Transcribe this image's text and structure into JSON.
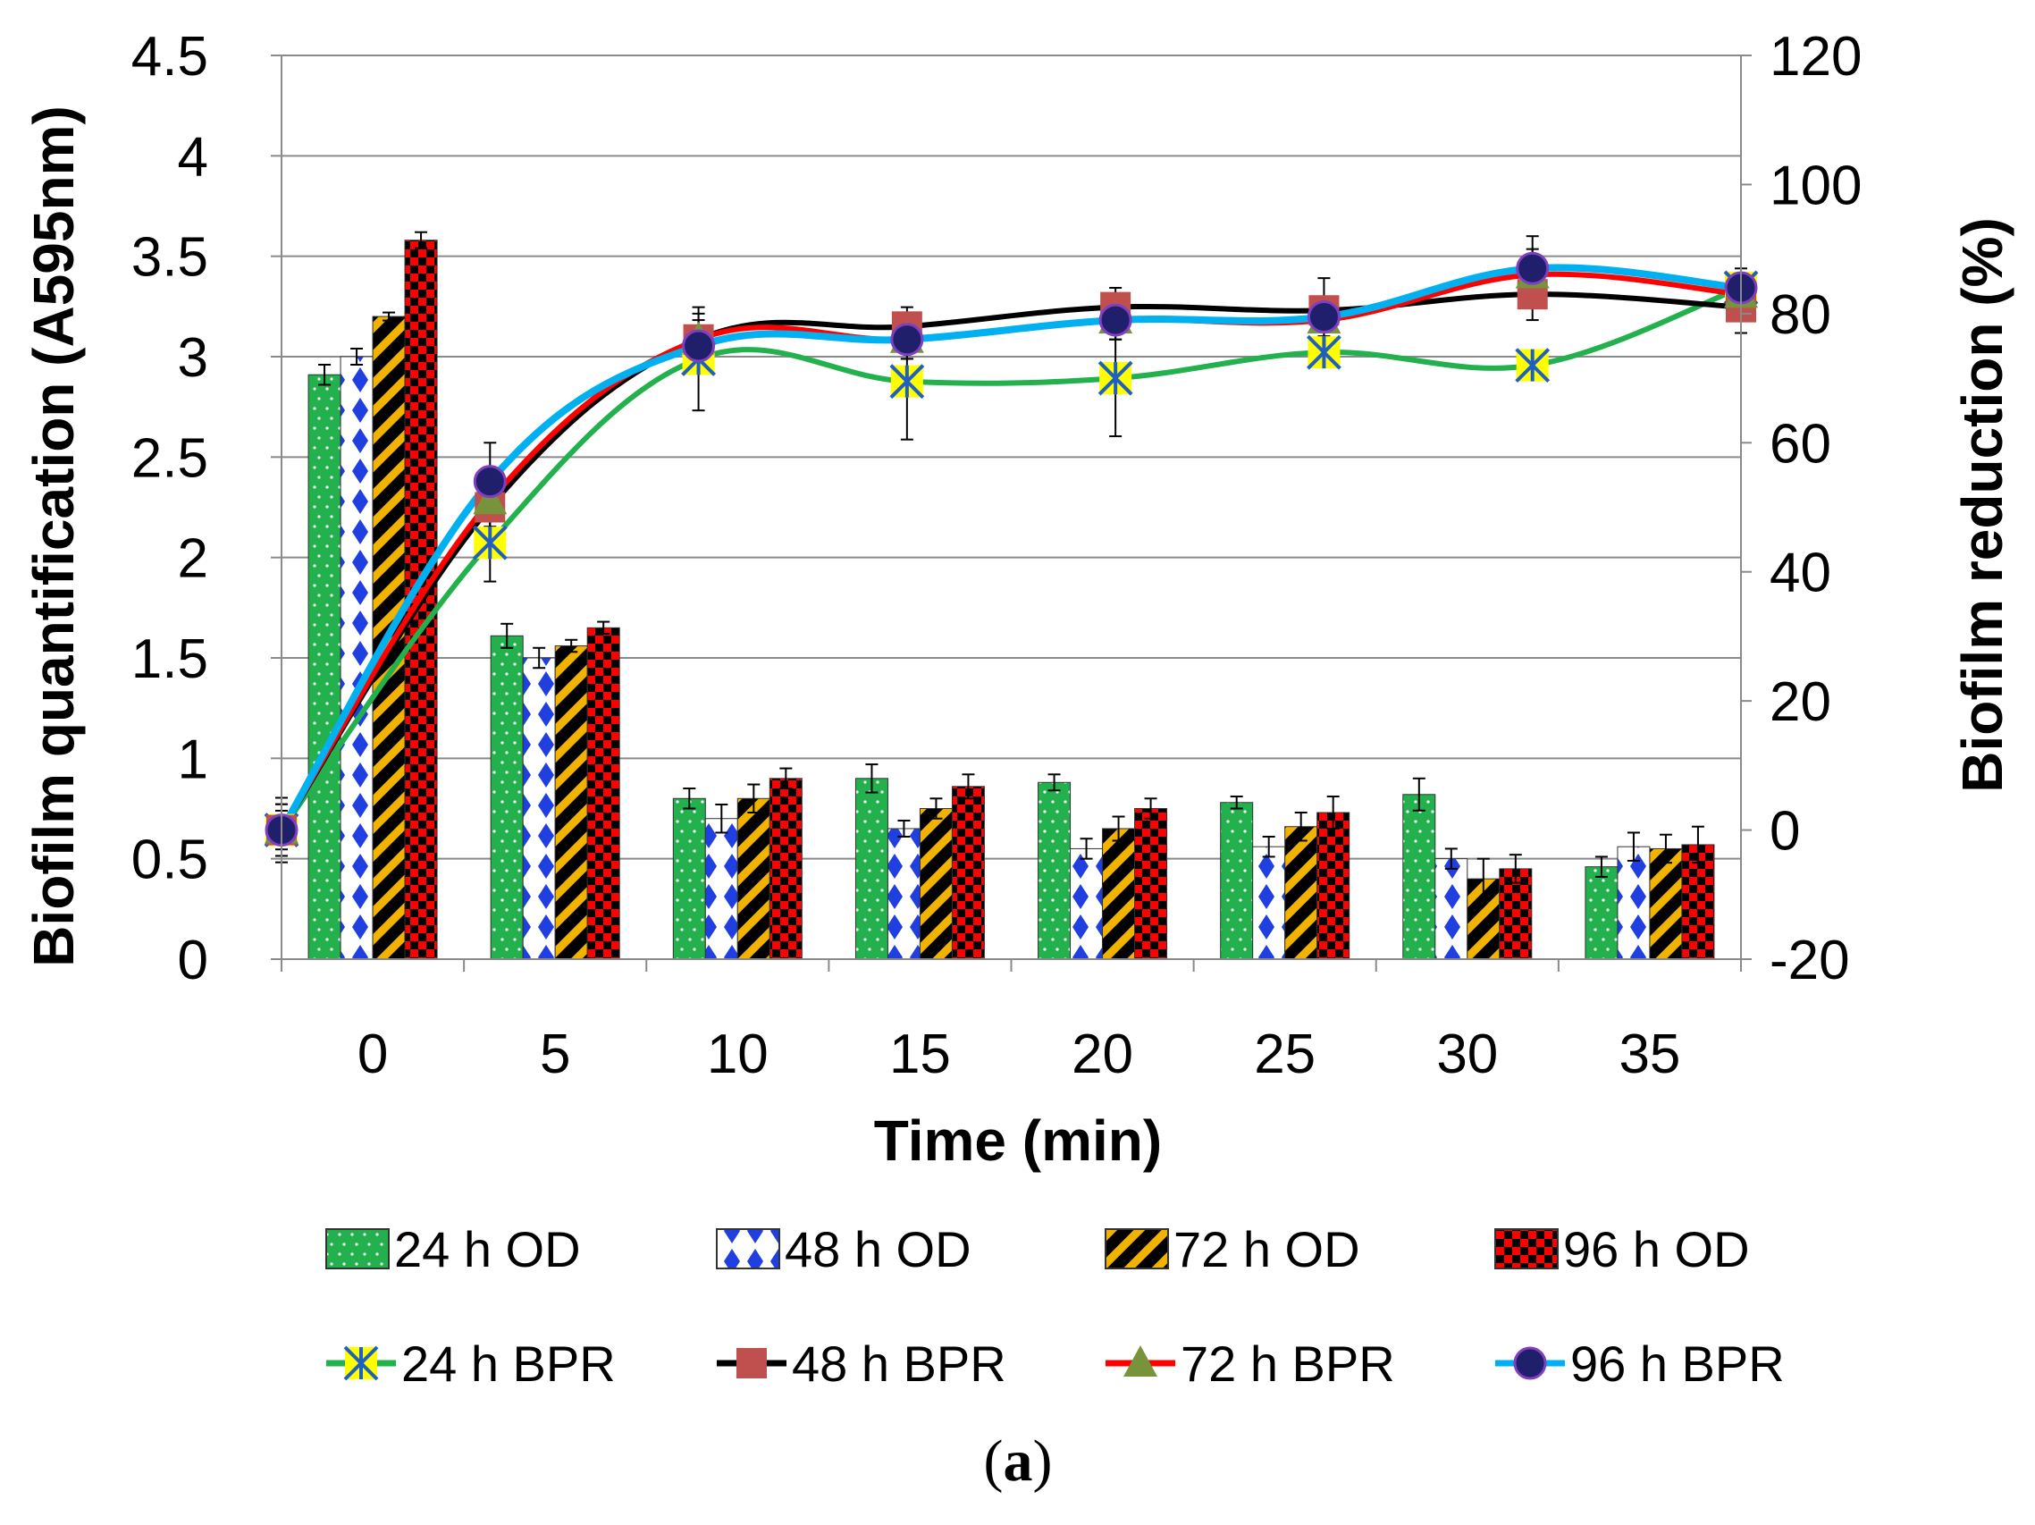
{
  "chart_data": {
    "type": "bar+line",
    "caption": "(a)",
    "caption_parts": {
      "open": "(",
      "letter": "a",
      "close": ")"
    },
    "xlabel": "Time (min)",
    "ylabel_left": "Biofilm quantification (A595nm)",
    "ylabel_right": "Biofilm  reduction (%)",
    "categories": [
      "0",
      "5",
      "10",
      "15",
      "20",
      "25",
      "30",
      "35"
    ],
    "y_left": {
      "min": 0,
      "max": 4.5,
      "ticks": [
        "0",
        "0.5",
        "1",
        "1.5",
        "2",
        "2.5",
        "3",
        "3.5",
        "4",
        "4.5"
      ]
    },
    "y_right": {
      "min": -20,
      "max": 120,
      "ticks": [
        "-20",
        "0",
        "20",
        "40",
        "60",
        "80",
        "100",
        "120"
      ]
    },
    "grid": true,
    "legend_position": "bottom",
    "bar_series": [
      {
        "name": "24 h OD",
        "values": [
          2.91,
          1.61,
          0.8,
          0.9,
          0.88,
          0.78,
          0.82,
          0.46
        ],
        "errors": [
          0.05,
          0.06,
          0.05,
          0.07,
          0.04,
          0.03,
          0.08,
          0.05
        ],
        "color": "#22b14c",
        "pattern": "dots"
      },
      {
        "name": "48 h OD",
        "values": [
          3.0,
          1.5,
          0.7,
          0.65,
          0.55,
          0.56,
          0.5,
          0.56
        ],
        "errors": [
          0.04,
          0.05,
          0.07,
          0.04,
          0.05,
          0.05,
          0.05,
          0.07
        ],
        "color": "#1f3fe0",
        "pattern": "diamonds"
      },
      {
        "name": "72 h OD",
        "values": [
          3.2,
          1.56,
          0.8,
          0.75,
          0.65,
          0.66,
          0.4,
          0.55
        ],
        "errors": [
          0.02,
          0.03,
          0.07,
          0.05,
          0.06,
          0.07,
          0.1,
          0.07
        ],
        "color": "#f2b200",
        "pattern": "stripes"
      },
      {
        "name": "96 h OD",
        "values": [
          3.58,
          1.65,
          0.9,
          0.86,
          0.75,
          0.73,
          0.45,
          0.57
        ],
        "errors": [
          0.04,
          0.03,
          0.05,
          0.06,
          0.05,
          0.08,
          0.07,
          0.09
        ],
        "color": "#ff0000",
        "pattern": "checker"
      }
    ],
    "line_series": [
      {
        "name": "24 h BPR",
        "x": [
          0,
          5,
          10,
          15,
          20,
          25,
          30,
          35
        ],
        "values": [
          0,
          44.5,
          73,
          69.5,
          70,
          74,
          72,
          84
        ],
        "errors": [
          5,
          6,
          8,
          9,
          9,
          2,
          2,
          2
        ],
        "color": "#22b14c",
        "marker": "star",
        "marker_color": "#ffff00"
      },
      {
        "name": "48 h BPR",
        "x": [
          0,
          5,
          10,
          15,
          20,
          25,
          30,
          35
        ],
        "values": [
          0,
          50,
          76,
          78,
          81,
          80.5,
          83,
          81
        ],
        "errors": [
          4,
          5,
          4,
          3,
          3,
          5,
          4,
          4
        ],
        "color": "#000000",
        "marker": "square",
        "marker_color": "#c0504d"
      },
      {
        "name": "72 h BPR",
        "x": [
          0,
          5,
          10,
          15,
          20,
          25,
          30,
          35
        ],
        "values": [
          0,
          51,
          76,
          76,
          79,
          79,
          86,
          83
        ],
        "errors": [
          3,
          4,
          3,
          3,
          3,
          3,
          4,
          3
        ],
        "color": "#ff0000",
        "marker": "triangle",
        "marker_color": "#77933c"
      },
      {
        "name": "96 h BPR",
        "x": [
          0,
          5,
          10,
          15,
          20,
          25,
          30,
          35
        ],
        "values": [
          0,
          54,
          75,
          76,
          79,
          79.5,
          87,
          84
        ],
        "errors": [
          4,
          6,
          3,
          3,
          3,
          3,
          5,
          3
        ],
        "color": "#00b0f0",
        "marker": "circle",
        "marker_color": "#1f1f6b"
      }
    ]
  }
}
